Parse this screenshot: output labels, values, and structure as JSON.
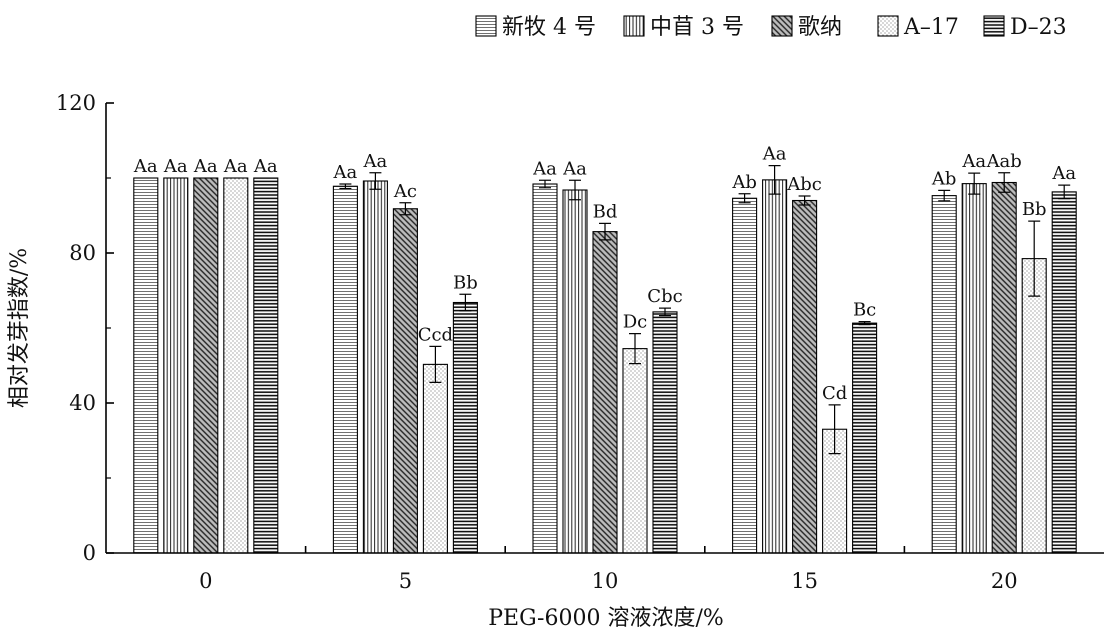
{
  "chart_data": {
    "type": "bar",
    "xlabel": "PEG-6000 溶液浓度/%",
    "ylabel": "相对发芽指数/%",
    "ylim": [
      0,
      120
    ],
    "yticks": [
      0,
      40,
      80,
      120
    ],
    "categories": [
      "0",
      "5",
      "10",
      "15",
      "20"
    ],
    "legend_position": "top-right",
    "grid": false,
    "series": [
      {
        "name": "新牧 4 号",
        "pattern": "hlines",
        "values": [
          100,
          97.8,
          98.4,
          94.6,
          95.3
        ],
        "errors": [
          0,
          0.6,
          1.0,
          1.2,
          1.4
        ],
        "letters": [
          "Aa",
          "Aa",
          "Aa",
          "Ab",
          "Ab"
        ]
      },
      {
        "name": "中苜 3 号",
        "pattern": "vlines",
        "values": [
          100,
          99.2,
          96.8,
          99.5,
          98.5
        ],
        "errors": [
          0,
          2.2,
          2.6,
          3.8,
          2.8
        ],
        "letters": [
          "Aa",
          "Aa",
          "Aa",
          "Aa",
          "Aa"
        ]
      },
      {
        "name": "歌纳",
        "pattern": "diag",
        "values": [
          100,
          91.8,
          85.7,
          94.0,
          98.8
        ],
        "errors": [
          0,
          1.6,
          2.2,
          1.2,
          2.6
        ],
        "letters": [
          "Aa",
          "Ac",
          "Bd",
          "Abc",
          "Aab"
        ]
      },
      {
        "name": "A–17",
        "pattern": "dots",
        "values": [
          100,
          50.3,
          54.5,
          33.0,
          78.5
        ],
        "errors": [
          0,
          4.8,
          4.0,
          6.5,
          10.0
        ],
        "letters": [
          "Aa",
          "Ccd",
          "Dc",
          "Cd",
          "Bb"
        ]
      },
      {
        "name": "D–23",
        "pattern": "hlines-bold",
        "values": [
          100,
          66.8,
          64.3,
          61.3,
          96.3
        ],
        "errors": [
          0,
          2.2,
          1.0,
          0.4,
          1.8
        ],
        "letters": [
          "Aa",
          "Bb",
          "Cbc",
          "Bc",
          "Aa"
        ]
      }
    ]
  }
}
